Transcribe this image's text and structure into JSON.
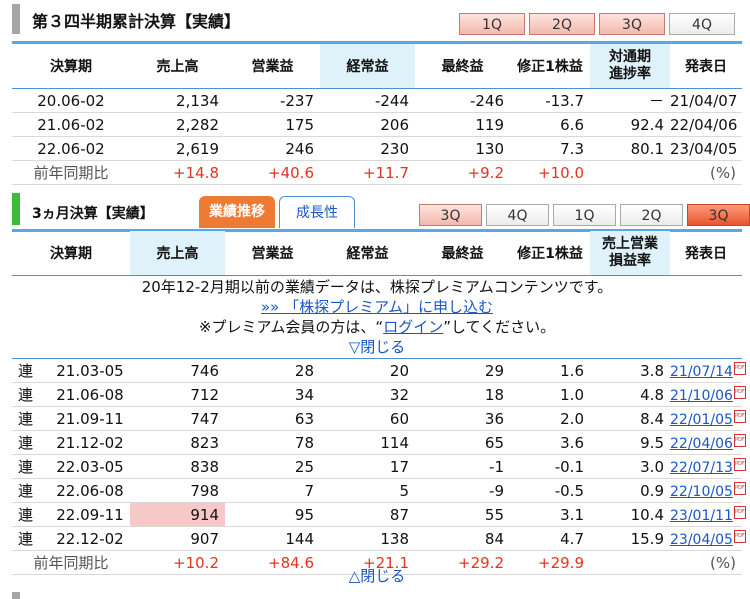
{
  "section1": {
    "title": "第３四半期累計決算【実績】",
    "tabs": [
      "1Q",
      "2Q",
      "3Q",
      "4Q"
    ],
    "headers": [
      "決算期",
      "売上高",
      "営業益",
      "経常益",
      "最終益",
      "修正1株益",
      "対通期\n進捗率",
      "発表日"
    ],
    "rows": [
      {
        "period": "20.06-02",
        "sales": "2,134",
        "op": "-237",
        "ord": "-244",
        "net": "-246",
        "eps": "-13.7",
        "prog": "－",
        "date": "21/04/07"
      },
      {
        "period": "21.06-02",
        "sales": "2,282",
        "op": "175",
        "ord": "206",
        "net": "119",
        "eps": "6.6",
        "prog": "92.4",
        "date": "22/04/06"
      },
      {
        "period": "22.06-02",
        "sales": "2,619",
        "op": "246",
        "ord": "230",
        "net": "130",
        "eps": "7.3",
        "prog": "80.1",
        "date": "23/04/05"
      }
    ],
    "compare": {
      "label": "前年同期比",
      "sales": "+14.8",
      "op": "+40.6",
      "ord": "+11.7",
      "net": "+9.2",
      "eps": "+10.0",
      "unit": "(%)"
    }
  },
  "section2": {
    "title": "3ヵ月決算【実績】",
    "tab_performance": "業績推移",
    "tab_growth": "成長性",
    "qtabs": [
      "3Q",
      "4Q",
      "1Q",
      "2Q",
      "3Q"
    ],
    "headers": [
      "決算期",
      "売上高",
      "営業益",
      "経常益",
      "最終益",
      "修正1株益",
      "売上営業\n損益率",
      "発表日"
    ],
    "notice_line1": "20年12-2月期以前の業績データは、株探プレミアムコンテンツです。",
    "notice_link": "»» 「株探プレミアム」に申し込む",
    "notice_line3_pre": "※プレミアム会員の方は、“",
    "notice_login": "ログイン",
    "notice_line3_post": "”してください。",
    "close_top": "▽閉じる",
    "close_bottom": "△閉じる",
    "pdf_icon": "PDF",
    "rows": [
      {
        "type": "連",
        "period": "21.03-05",
        "sales": "746",
        "op": "28",
        "ord": "20",
        "net": "29",
        "eps": "1.6",
        "margin": "3.8",
        "date": "21/07/14"
      },
      {
        "type": "連",
        "period": "21.06-08",
        "sales": "712",
        "op": "34",
        "ord": "32",
        "net": "18",
        "eps": "1.0",
        "margin": "4.8",
        "date": "21/10/06"
      },
      {
        "type": "連",
        "period": "21.09-11",
        "sales": "747",
        "op": "63",
        "ord": "60",
        "net": "36",
        "eps": "2.0",
        "margin": "8.4",
        "date": "22/01/05"
      },
      {
        "type": "連",
        "period": "21.12-02",
        "sales": "823",
        "op": "78",
        "ord": "114",
        "net": "65",
        "eps": "3.6",
        "margin": "9.5",
        "date": "22/04/06"
      },
      {
        "type": "連",
        "period": "22.03-05",
        "sales": "838",
        "op": "25",
        "ord": "17",
        "net": "-1",
        "eps": "-0.1",
        "margin": "3.0",
        "date": "22/07/13"
      },
      {
        "type": "連",
        "period": "22.06-08",
        "sales": "798",
        "op": "7",
        "ord": "5",
        "net": "-9",
        "eps": "-0.5",
        "margin": "0.9",
        "date": "22/10/05"
      },
      {
        "type": "連",
        "period": "22.09-11",
        "sales": "914",
        "op": "95",
        "ord": "87",
        "net": "55",
        "eps": "3.1",
        "margin": "10.4",
        "date": "23/01/11"
      },
      {
        "type": "連",
        "period": "22.12-02",
        "sales": "907",
        "op": "144",
        "ord": "138",
        "net": "84",
        "eps": "4.7",
        "margin": "15.9",
        "date": "23/04/05"
      }
    ],
    "compare": {
      "label": "前年同期比",
      "sales": "+10.2",
      "op": "+84.6",
      "ord": "+21.1",
      "net": "+29.2",
      "eps": "+29.9",
      "unit": "(%)"
    }
  },
  "colors": {
    "accent_blue": "#4f8fd0",
    "orange": "#ef7a33",
    "red": "#e53320",
    "highlight": "#dff2f9"
  }
}
